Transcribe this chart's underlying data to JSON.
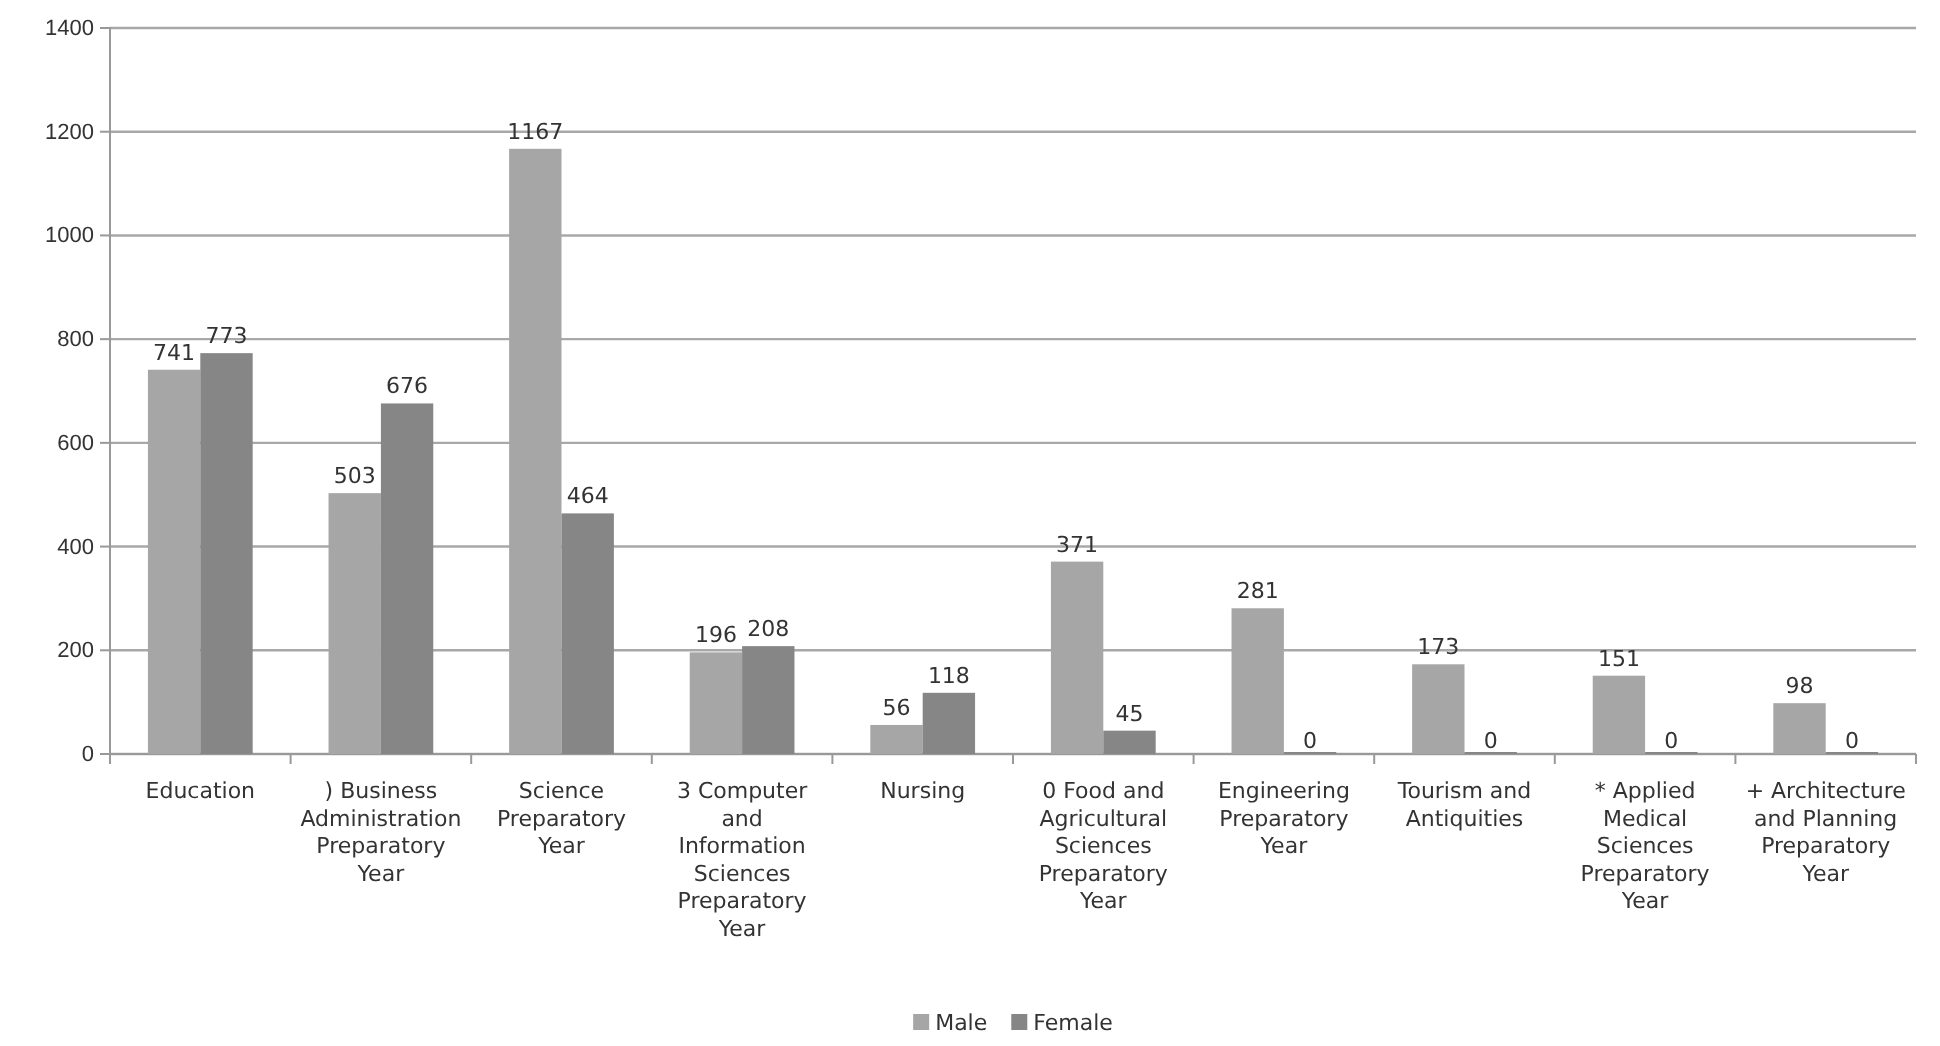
{
  "chart_data": {
    "type": "bar",
    "categories": [
      "Education",
      ") Business Administration Preparatory Year",
      "Science Preparatory Year",
      "3 Computer and Information Sciences Preparatory Year",
      "Nursing",
      "0 Food and Agricultural Sciences Preparatory Year",
      "Engineering Preparatory Year",
      "Tourism and Antiquities",
      "* Applied Medical Sciences Preparatory Year",
      "+ Architecture and Planning Preparatory Year"
    ],
    "series": [
      {
        "name": "Male",
        "color": "#a6a6a6",
        "values": [
          741,
          503,
          1167,
          196,
          56,
          371,
          281,
          173,
          151,
          98
        ]
      },
      {
        "name": "Female",
        "color": "#868686",
        "values": [
          773,
          676,
          464,
          208,
          118,
          45,
          0,
          0,
          0,
          0
        ]
      }
    ],
    "ylim": [
      0,
      1400
    ],
    "yticks": [
      0,
      200,
      400,
      600,
      800,
      1000,
      1200,
      1400
    ],
    "grid": "y",
    "legend": "bottom",
    "data_labels": true
  }
}
